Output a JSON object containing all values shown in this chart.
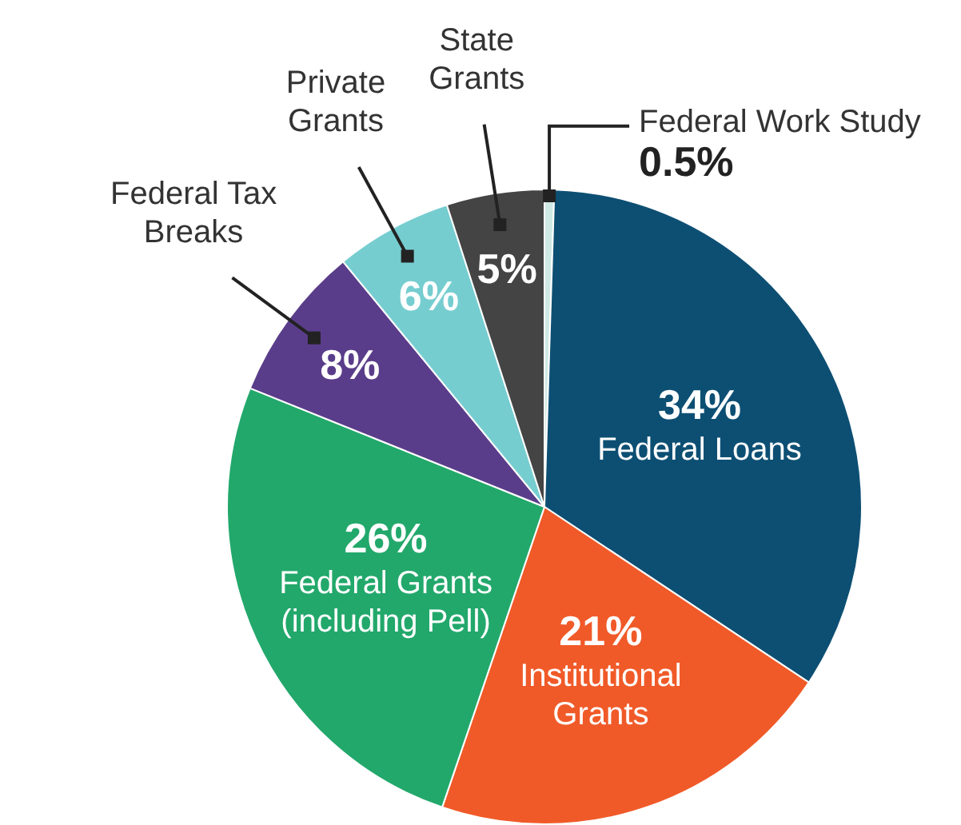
{
  "chart_data": {
    "type": "pie",
    "categories": [
      "Federal Work Study",
      "Federal Loans",
      "Institutional Grants",
      "Federal Grants (including Pell)",
      "Federal Tax Breaks",
      "Private Grants",
      "State Grants"
    ],
    "values": [
      0.5,
      34,
      21,
      26,
      8,
      6,
      5
    ],
    "value_labels": [
      "0.5%",
      "34%",
      "21%",
      "26%",
      "8%",
      "6%",
      "5%"
    ],
    "colors": [
      "#cfe9e4",
      "#0d4f73",
      "#f05a28",
      "#22a86b",
      "#5a3d8a",
      "#76cdd0",
      "#444444"
    ],
    "legend": false
  }
}
